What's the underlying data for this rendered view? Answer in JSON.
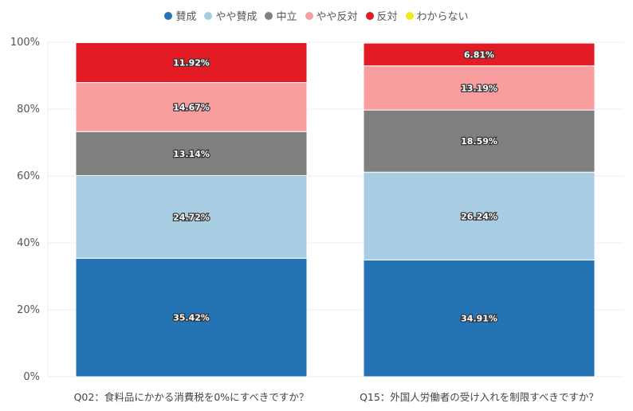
{
  "chart_data": {
    "type": "bar",
    "stacked": true,
    "categories": [
      "Q02：食料品にかかる消費税を0%にすべきですか？",
      "Q15：外国人労働者の受け入れを制限すべきですか？"
    ],
    "series": [
      {
        "name": "賛成",
        "color": "#2474b5",
        "values": [
          35.42,
          34.91
        ],
        "labels": [
          "35.42%",
          "34.91%"
        ]
      },
      {
        "name": "やや賛成",
        "color": "#a8cde3",
        "values": [
          24.72,
          26.24
        ],
        "labels": [
          "24.72%",
          "26.24%"
        ]
      },
      {
        "name": "中立",
        "color": "#807f80",
        "values": [
          13.14,
          18.59
        ],
        "labels": [
          "13.14%",
          "18.59%"
        ]
      },
      {
        "name": "やや反対",
        "color": "#f99d9e",
        "values": [
          14.67,
          13.19
        ],
        "labels": [
          "14.67%",
          "13.19%"
        ]
      },
      {
        "name": "反対",
        "color": "#e21b24",
        "values": [
          11.92,
          6.81
        ],
        "labels": [
          "11.92%",
          "6.81%"
        ]
      },
      {
        "name": "わからない",
        "color": "#f0eb1e",
        "values": [
          0,
          0
        ],
        "labels": [
          "",
          ""
        ]
      }
    ],
    "ylim": [
      0,
      100
    ],
    "yticks": [
      "0%",
      "20%",
      "40%",
      "60%",
      "80%",
      "100%"
    ],
    "legend_position": "top",
    "grid": true
  }
}
